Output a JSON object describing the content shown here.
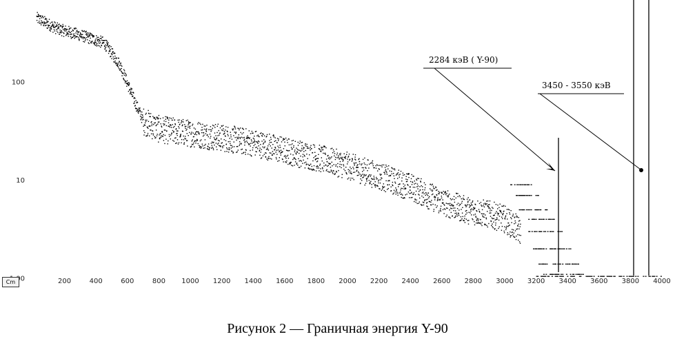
{
  "caption": "Рисунок 2 — Граничная энергия Y-90",
  "chart_data": {
    "type": "scatter",
    "y_scale": "log",
    "x_range": [
      0,
      4000
    ],
    "y_range": [
      0.9,
      550
    ],
    "corner_label": "Cm",
    "x_ticks": [
      "200",
      "400",
      "600",
      "800",
      "1000",
      "1200",
      "1400",
      "1600",
      "1800",
      "2000",
      "2200",
      "2400",
      "2600",
      "2800",
      "3000",
      "3200",
      "3400",
      "3600",
      "3800",
      "4000"
    ],
    "y_ticks": [
      {
        "label": "100",
        "value": 100
      },
      {
        "label": "10",
        "value": 10
      },
      {
        "label": "1.00",
        "value": 1
      }
    ],
    "series": [
      {
        "x": [
          20,
          150,
          300,
          450,
          550,
          650,
          700,
          800,
          1000,
          1200,
          1400,
          1600,
          1800,
          2000,
          2200,
          2400,
          2600,
          2750,
          2900,
          3000,
          3100,
          3200,
          3300,
          3400,
          3500,
          3600,
          3700,
          3800,
          3900
        ],
        "y": [
          450,
          350,
          300,
          250,
          150,
          60,
          40,
          33,
          30,
          27,
          24,
          20,
          17,
          14,
          11,
          8.5,
          6,
          5,
          4.5,
          4,
          3,
          2,
          1.4,
          1.1,
          1,
          1,
          1,
          1,
          1
        ]
      }
    ],
    "annotations": [
      {
        "text": "2284 кэВ ( Y-90)"
      },
      {
        "text": "3450 - 3550 кэВ"
      }
    ],
    "grid": false,
    "legend": "none"
  }
}
